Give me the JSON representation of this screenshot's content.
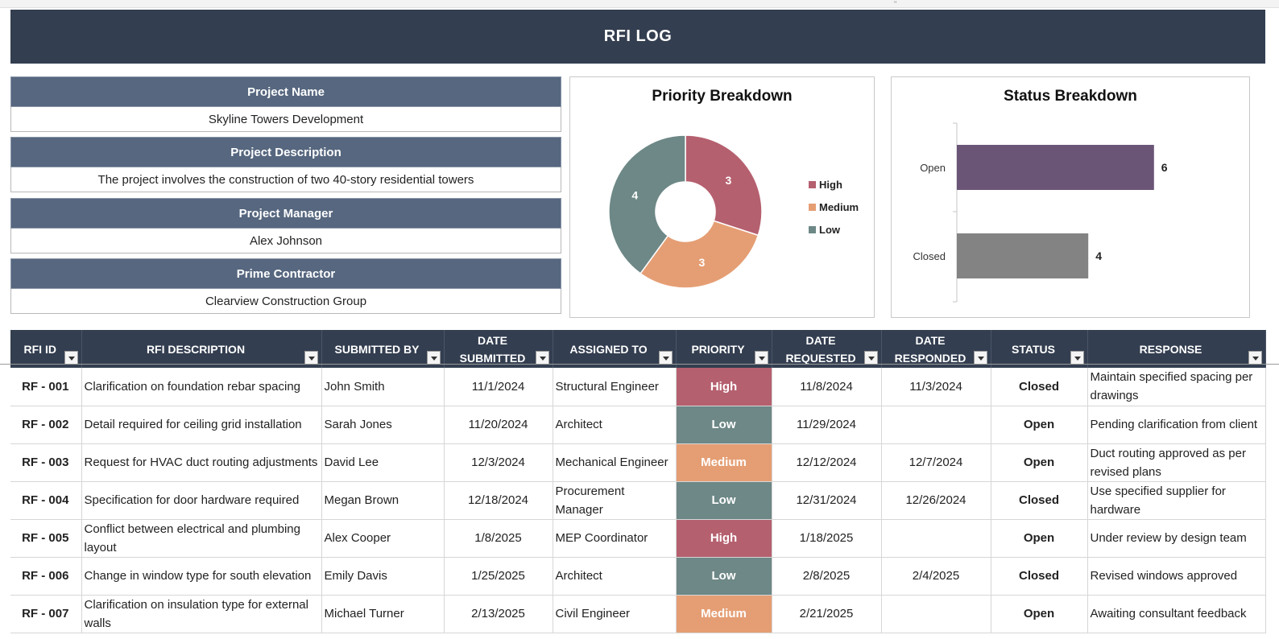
{
  "title": "RFI LOG",
  "project": [
    {
      "label": "Project Name",
      "value": "Skyline Towers Development"
    },
    {
      "label": "Project Description",
      "value": "The project involves the construction of two 40-story residential towers"
    },
    {
      "label": "Project Manager",
      "value": "Alex Johnson"
    },
    {
      "label": "Prime Contractor",
      "value": "Clearview Construction Group"
    }
  ],
  "colors": {
    "header": "#333e50",
    "info_header": "#56677f",
    "high": "#b5606f",
    "medium": "#e59e74",
    "low": "#6d8886",
    "open_bar": "#6a5577",
    "closed_bar": "#838383"
  },
  "chart_data": [
    {
      "type": "pie",
      "variant": "donut",
      "title": "Priority Breakdown",
      "categories": [
        "High",
        "Medium",
        "Low"
      ],
      "values": [
        3,
        3,
        4
      ],
      "legend": "right"
    },
    {
      "type": "bar",
      "orientation": "horizontal",
      "title": "Status Breakdown",
      "categories": [
        "Open",
        "Closed"
      ],
      "values": [
        6,
        4
      ],
      "xlim": [
        0,
        7
      ]
    }
  ],
  "table": {
    "columns": [
      "RFI ID",
      "RFI DESCRIPTION",
      "SUBMITTED BY",
      "DATE SUBMITTED",
      "ASSIGNED TO",
      "PRIORITY",
      "DATE REQUESTED",
      "DATE RESPONDED",
      "STATUS",
      "RESPONSE"
    ],
    "rows": [
      {
        "id": "RF - 001",
        "desc": "Clarification on foundation rebar spacing",
        "by": "John Smith",
        "submitted": "11/1/2024",
        "assigned": "Structural Engineer",
        "priority": "High",
        "requested": "11/8/2024",
        "responded": "11/3/2024",
        "status": "Closed",
        "response": "Maintain specified spacing per drawings"
      },
      {
        "id": "RF - 002",
        "desc": "Detail required for ceiling grid installation",
        "by": "Sarah Jones",
        "submitted": "11/20/2024",
        "assigned": "Architect",
        "priority": "Low",
        "requested": "11/29/2024",
        "responded": "",
        "status": "Open",
        "response": "Pending clarification from client"
      },
      {
        "id": "RF - 003",
        "desc": "Request for HVAC duct routing adjustments",
        "by": "David Lee",
        "submitted": "12/3/2024",
        "assigned": "Mechanical Engineer",
        "priority": "Medium",
        "requested": "12/12/2024",
        "responded": "12/7/2024",
        "status": "Open",
        "response": "Duct routing approved as per revised plans"
      },
      {
        "id": "RF - 004",
        "desc": "Specification for door hardware required",
        "by": "Megan Brown",
        "submitted": "12/18/2024",
        "assigned": "Procurement Manager",
        "priority": "Low",
        "requested": "12/31/2024",
        "responded": "12/26/2024",
        "status": "Closed",
        "response": "Use specified supplier for hardware"
      },
      {
        "id": "RF - 005",
        "desc": "Conflict between electrical and plumbing layout",
        "by": "Alex Cooper",
        "submitted": "1/8/2025",
        "assigned": "MEP Coordinator",
        "priority": "High",
        "requested": "1/18/2025",
        "responded": "",
        "status": "Open",
        "response": "Under review by design team"
      },
      {
        "id": "RF - 006",
        "desc": "Change in window type for south elevation",
        "by": "Emily Davis",
        "submitted": "1/25/2025",
        "assigned": "Architect",
        "priority": "Low",
        "requested": "2/8/2025",
        "responded": "2/4/2025",
        "status": "Closed",
        "response": "Revised windows approved"
      },
      {
        "id": "RF - 007",
        "desc": "Clarification on insulation type for external walls",
        "by": "Michael Turner",
        "submitted": "2/13/2025",
        "assigned": "Civil Engineer",
        "priority": "Medium",
        "requested": "2/21/2025",
        "responded": "",
        "status": "Open",
        "response": "Awaiting consultant feedback"
      }
    ]
  }
}
